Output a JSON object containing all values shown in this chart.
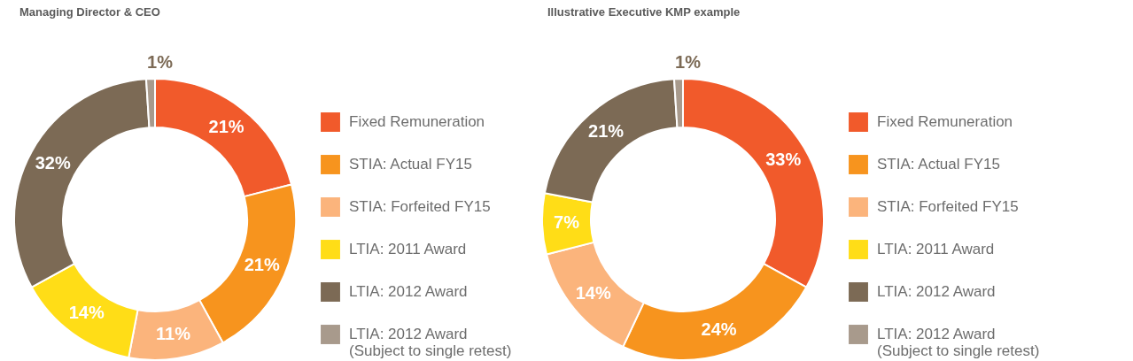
{
  "chart_data": [
    {
      "type": "donut",
      "title": "Managing Director & CEO",
      "categories": [
        "Fixed Remuneration",
        "STIA: Actual FY15",
        "STIA: Forfeited FY15",
        "LTIA: 2011 Award",
        "LTIA: 2012 Award",
        "LTIA: 2012 Award\n(Subject to single retest)"
      ],
      "values": [
        21,
        21,
        11,
        14,
        32,
        1
      ],
      "value_labels": [
        "21%",
        "21%",
        "11%",
        "14%",
        "32%",
        "1%"
      ],
      "colors": [
        "#f15a2b",
        "#f7941e",
        "#fbb47c",
        "#ffdd17",
        "#7c6a55",
        "#a89a8c"
      ],
      "legend": "right"
    },
    {
      "type": "donut",
      "title": "Illustrative Executive KMP example",
      "categories": [
        "Fixed Remuneration",
        "STIA: Actual FY15",
        "STIA: Forfeited FY15",
        "LTIA: 2011 Award",
        "LTIA: 2012 Award",
        "LTIA: 2012 Award\n(Subject to single retest)"
      ],
      "values": [
        33,
        24,
        14,
        7,
        21,
        1
      ],
      "value_labels": [
        "33%",
        "24%",
        "14%",
        "7%",
        "21%",
        "1%"
      ],
      "colors": [
        "#f15a2b",
        "#f7941e",
        "#fbb47c",
        "#ffdd17",
        "#7c6a55",
        "#a89a8c"
      ],
      "legend": "right"
    }
  ]
}
